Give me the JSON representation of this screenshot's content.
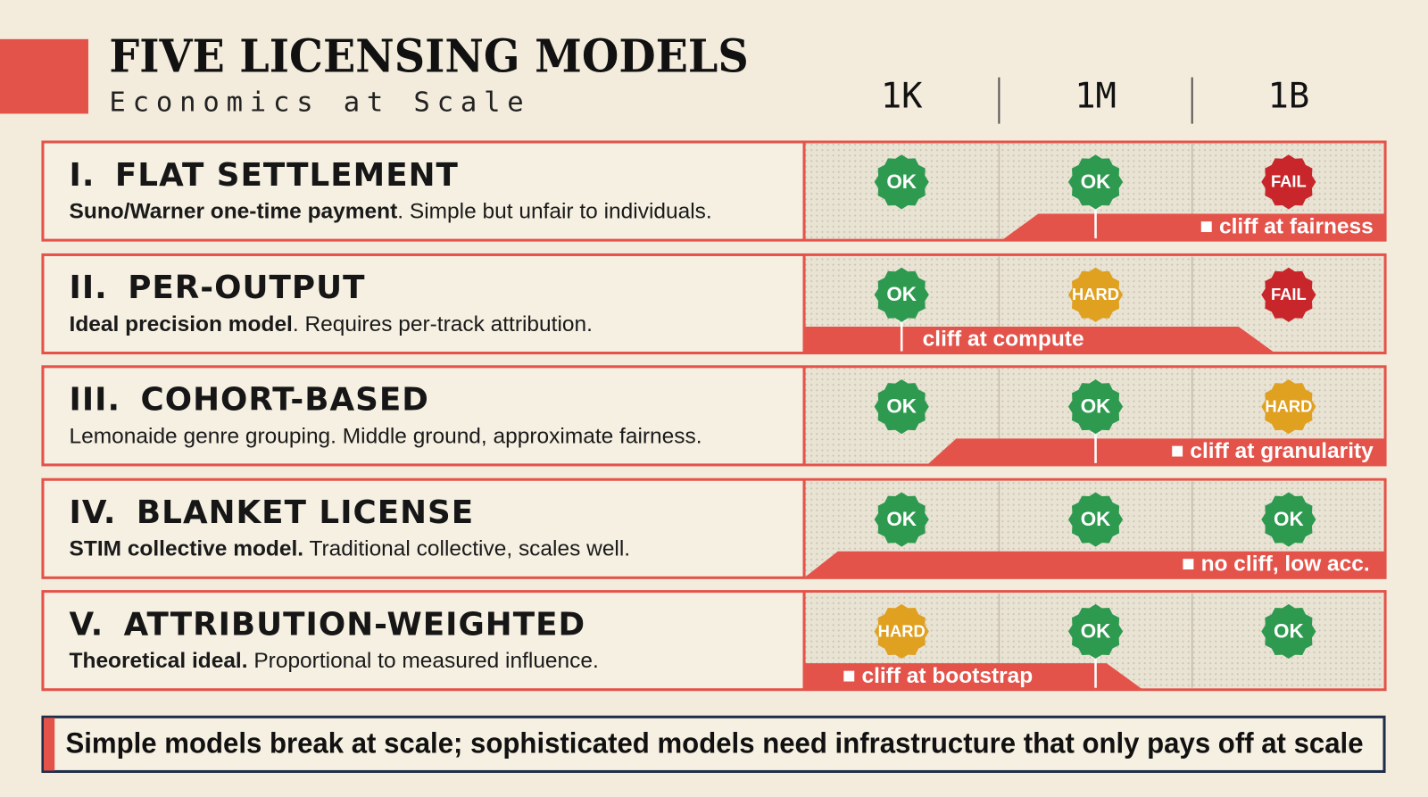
{
  "header": {
    "title": "FIVE LICENSING MODELS",
    "subtitle": "Economics at Scale"
  },
  "columns": [
    "1K",
    "1M",
    "1B"
  ],
  "rows": [
    {
      "numeral": "I.",
      "name": "FLAT SETTLEMENT",
      "lead": "Suno/Warner one-time payment",
      "text": ". Simple but unfair to individuals.",
      "statuses": [
        {
          "label": "OK",
          "color": "#2e9a4f"
        },
        {
          "label": "OK",
          "color": "#2e9a4f"
        },
        {
          "label": "FAIL",
          "color": "#c8262a"
        }
      ],
      "cliff": "■ cliff at fairness"
    },
    {
      "numeral": "II.",
      "name": "PER-OUTPUT",
      "lead": "Ideal precision model",
      "text": ". Requires per-track attribution.",
      "statuses": [
        {
          "label": "OK",
          "color": "#2e9a4f"
        },
        {
          "label": "HARD",
          "color": "#e0a020"
        },
        {
          "label": "FAIL",
          "color": "#c8262a"
        }
      ],
      "cliff": "cliff at compute"
    },
    {
      "numeral": "III.",
      "name": "COHORT-BASED",
      "text": "Lemonaide genre grouping. Middle ground, approximate fairness.",
      "statuses": [
        {
          "label": "OK",
          "color": "#2e9a4f"
        },
        {
          "label": "OK",
          "color": "#2e9a4f"
        },
        {
          "label": "HARD",
          "color": "#e0a020"
        }
      ],
      "cliff": "■ cliff at granularity"
    },
    {
      "numeral": "IV.",
      "name": "BLANKET LICENSE",
      "lead": "STIM collective model.",
      "text": " Traditional collective, scales well.",
      "statuses": [
        {
          "label": "OK",
          "color": "#2e9a4f"
        },
        {
          "label": "OK",
          "color": "#2e9a4f"
        },
        {
          "label": "OK",
          "color": "#2e9a4f"
        }
      ],
      "cliff": "■ no cliff, low acc."
    },
    {
      "numeral": "V.",
      "name": "ATTRIBUTION-WEIGHTED",
      "lead": "Theoretical ideal.",
      "text": " Proportional to measured influence.",
      "statuses": [
        {
          "label": "HARD",
          "color": "#e0a020"
        },
        {
          "label": "OK",
          "color": "#2e9a4f"
        },
        {
          "label": "OK",
          "color": "#2e9a4f"
        }
      ],
      "cliff": "■ cliff at bootstrap"
    }
  ],
  "footer": "Simple models break at scale; sophisticated models need infrastructure that only pays off at scale"
}
